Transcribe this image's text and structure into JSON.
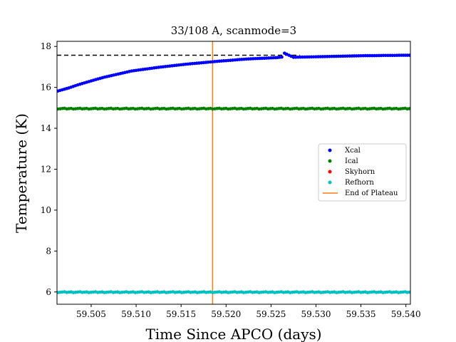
{
  "chart_data": {
    "type": "scatter",
    "title": "33/108 A, scanmode=3",
    "xlabel": "Time Since APCO (days)",
    "ylabel": "Temperature (K)",
    "xlim": [
      59.5012,
      59.5405
    ],
    "ylim": [
      5.4,
      18.25
    ],
    "xticks": [
      59.505,
      59.51,
      59.515,
      59.52,
      59.525,
      59.53,
      59.535,
      59.54
    ],
    "xtick_labels": [
      "59.505",
      "59.510",
      "59.515",
      "59.520",
      "59.525",
      "59.530",
      "59.535",
      "59.540"
    ],
    "yticks": [
      6,
      8,
      10,
      12,
      14,
      16,
      18
    ],
    "ytick_labels": [
      "6",
      "8",
      "10",
      "12",
      "14",
      "16",
      "18"
    ],
    "grid": false,
    "legend_position": "right",
    "series": [
      {
        "name": "Xcal",
        "color": "#0000ff",
        "marker": "dot",
        "x": [
          59.5013,
          59.5025,
          59.5035,
          59.5045,
          59.5055,
          59.5065,
          59.5075,
          59.5085,
          59.5095,
          59.5105,
          59.5115,
          59.5125,
          59.5135,
          59.5145,
          59.5155,
          59.5165,
          59.5175,
          59.5185,
          59.5195,
          59.5205,
          59.5215,
          59.5225,
          59.5235,
          59.5245,
          59.5255,
          59.5262,
          59.5265,
          59.5275,
          59.5285,
          59.5295,
          59.5305,
          59.5315,
          59.5325,
          59.5335,
          59.5345,
          59.5355,
          59.5365,
          59.5375,
          59.5385,
          59.5395,
          59.5404
        ],
        "y": [
          15.82,
          15.97,
          16.12,
          16.25,
          16.38,
          16.5,
          16.6,
          16.7,
          16.8,
          16.86,
          16.92,
          16.98,
          17.03,
          17.08,
          17.13,
          17.17,
          17.21,
          17.25,
          17.29,
          17.32,
          17.36,
          17.39,
          17.41,
          17.43,
          17.45,
          17.48,
          17.67,
          17.47,
          17.48,
          17.49,
          17.5,
          17.51,
          17.52,
          17.53,
          17.54,
          17.55,
          17.55,
          17.56,
          17.56,
          17.57,
          17.57
        ]
      },
      {
        "name": "Ical",
        "color": "#008000",
        "marker": "dot",
        "x_start": 59.5013,
        "x_end": 59.5404,
        "y_constant": 14.96
      },
      {
        "name": "Skyhorn",
        "color": "#ff0000",
        "marker": "dot",
        "x": [],
        "y": []
      },
      {
        "name": "Refhorn",
        "color": "#00bfbf",
        "marker": "dot",
        "x_start": 59.5013,
        "x_end": 59.5404,
        "y_constant": 5.99
      }
    ],
    "reference_lines": [
      {
        "orientation": "horizontal",
        "y": 17.57,
        "x_start": 59.5012,
        "x_end": 59.5282,
        "style": "dashed",
        "color": "#000000"
      },
      {
        "name": "End of Plateau",
        "orientation": "vertical",
        "x": 59.5185,
        "style": "solid",
        "color": "#ff7f0e"
      }
    ]
  }
}
